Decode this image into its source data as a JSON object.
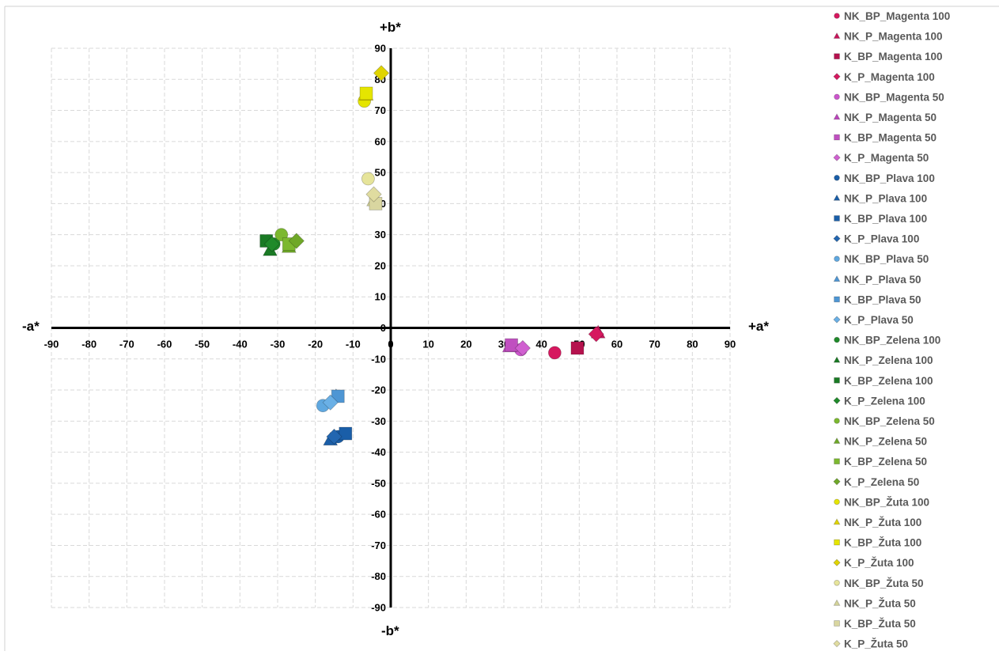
{
  "chart_data": {
    "type": "scatter",
    "title": "",
    "axis_labels": {
      "x_pos": "+a*",
      "x_neg": "-a*",
      "y_pos": "+b*",
      "y_neg": "-b*"
    },
    "xlim": [
      -90,
      90
    ],
    "ylim": [
      -90,
      90
    ],
    "x_ticks": [
      -90,
      -80,
      -70,
      -60,
      -50,
      -40,
      -30,
      -20,
      -10,
      0,
      10,
      20,
      30,
      40,
      50,
      60,
      70,
      80,
      90
    ],
    "y_ticks": [
      90,
      80,
      70,
      60,
      50,
      40,
      30,
      20,
      10,
      0,
      -10,
      -20,
      -30,
      -40,
      -50,
      -60,
      -70,
      -80,
      -90
    ],
    "grid": true,
    "legend_position": "right",
    "series": [
      {
        "name": "NK_BP_Magenta 100",
        "marker": "circle",
        "color": "#d6185f",
        "x": 43.5,
        "y": -8
      },
      {
        "name": "NK_P_Magenta 100",
        "marker": "triangle",
        "color": "#c8155a",
        "x": 55,
        "y": -1.5
      },
      {
        "name": "K_BP_Magenta 100",
        "marker": "square",
        "color": "#b5124e",
        "x": 49.5,
        "y": -6.5
      },
      {
        "name": "K_P_Magenta 100",
        "marker": "diamond",
        "color": "#d6185f",
        "x": 54.5,
        "y": -2
      },
      {
        "name": "NK_BP_Magenta 50",
        "marker": "circle",
        "color": "#cc55cc",
        "x": 34.5,
        "y": -7
      },
      {
        "name": "NK_P_Magenta 50",
        "marker": "triangle",
        "color": "#bb44bb",
        "x": 31.5,
        "y": -6
      },
      {
        "name": "K_BP_Magenta 50",
        "marker": "square",
        "color": "#c04fc0",
        "x": 32,
        "y": -5.5
      },
      {
        "name": "K_P_Magenta 50",
        "marker": "diamond",
        "color": "#d060d0",
        "x": 35,
        "y": -6.5
      },
      {
        "name": "NK_BP_Plava 100",
        "marker": "circle",
        "color": "#1a5ea8",
        "x": -14,
        "y": -35
      },
      {
        "name": "NK_P_Plava 100",
        "marker": "triangle",
        "color": "#1a5ea8",
        "x": -16,
        "y": -36
      },
      {
        "name": "K_BP_Plava 100",
        "marker": "square",
        "color": "#1a5ea8",
        "x": -12,
        "y": -34
      },
      {
        "name": "K_P_Plava 100",
        "marker": "diamond",
        "color": "#2266b0",
        "x": -15,
        "y": -35
      },
      {
        "name": "NK_BP_Plava 50",
        "marker": "circle",
        "color": "#5fa8e0",
        "x": -18,
        "y": -25
      },
      {
        "name": "NK_P_Plava 50",
        "marker": "triangle",
        "color": "#4e96d4",
        "x": -14.5,
        "y": -22
      },
      {
        "name": "K_BP_Plava 50",
        "marker": "square",
        "color": "#4e96d4",
        "x": -14,
        "y": -22
      },
      {
        "name": "K_P_Plava 50",
        "marker": "diamond",
        "color": "#6ab0e6",
        "x": -16,
        "y": -24
      },
      {
        "name": "NK_BP_Zelena 100",
        "marker": "circle",
        "color": "#1f8a2a",
        "x": -31,
        "y": 27
      },
      {
        "name": "NK_P_Zelena 100",
        "marker": "triangle",
        "color": "#1a7a24",
        "x": -32,
        "y": 25
      },
      {
        "name": "K_BP_Zelena 100",
        "marker": "square",
        "color": "#1a7a24",
        "x": -33,
        "y": 28
      },
      {
        "name": "K_P_Zelena 100",
        "marker": "diamond",
        "color": "#1f8a2a",
        "x": -31.5,
        "y": 27
      },
      {
        "name": "NK_BP_Zelena 50",
        "marker": "circle",
        "color": "#7cb82f",
        "x": -29,
        "y": 30
      },
      {
        "name": "NK_P_Zelena 50",
        "marker": "triangle",
        "color": "#6fa828",
        "x": -27,
        "y": 26
      },
      {
        "name": "K_BP_Zelena 50",
        "marker": "square",
        "color": "#7cb82f",
        "x": -27,
        "y": 27
      },
      {
        "name": "K_P_Zelena 50",
        "marker": "diamond",
        "color": "#6fa828",
        "x": -25,
        "y": 28
      },
      {
        "name": "NK_BP_Žuta 100",
        "marker": "circle",
        "color": "#e5e500",
        "x": -7,
        "y": 73
      },
      {
        "name": "NK_P_Žuta 100",
        "marker": "triangle",
        "color": "#e0d400",
        "x": -6.5,
        "y": 75
      },
      {
        "name": "K_BP_Žuta 100",
        "marker": "square",
        "color": "#e5e500",
        "x": -6.5,
        "y": 75.5
      },
      {
        "name": "K_P_Žuta 100",
        "marker": "diamond",
        "color": "#e0d400",
        "x": -2.5,
        "y": 82
      },
      {
        "name": "NK_BP_Žuta 50",
        "marker": "circle",
        "color": "#e6e49a",
        "x": -6,
        "y": 48
      },
      {
        "name": "NK_P_Žuta 50",
        "marker": "triangle",
        "color": "#d4d49a",
        "x": -4.5,
        "y": 41
      },
      {
        "name": "K_BP_Žuta 50",
        "marker": "square",
        "color": "#d9d6a0",
        "x": -4,
        "y": 40
      },
      {
        "name": "K_P_Žuta 50",
        "marker": "diamond",
        "color": "#e0dca0",
        "x": -4.5,
        "y": 43
      }
    ]
  }
}
